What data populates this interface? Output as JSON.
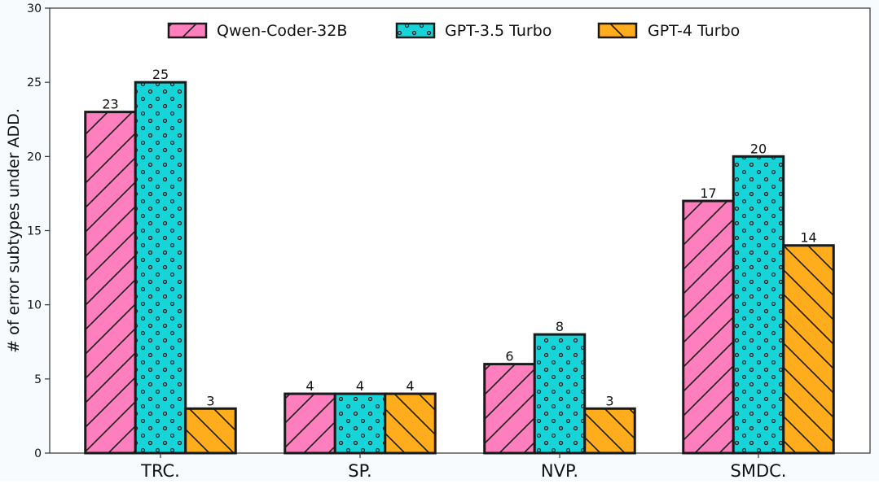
{
  "chart_data": {
    "type": "bar",
    "title": "",
    "xlabel": "",
    "ylabel": "# of error subtypes under ADD.",
    "ylim": [
      0,
      30
    ],
    "yticks": [
      0,
      5,
      10,
      15,
      20,
      25,
      30
    ],
    "grid": false,
    "legend_position": "top-center",
    "categories": [
      "TRC.",
      "SP.",
      "NVP.",
      "SMDC."
    ],
    "series": [
      {
        "name": "Qwen-Coder-32B",
        "color": "#ff7ebd",
        "pattern": "diagonal-forward",
        "values": [
          23,
          4,
          6,
          17
        ]
      },
      {
        "name": "GPT-3.5 Turbo",
        "color": "#17d4d8",
        "pattern": "dots",
        "values": [
          25,
          4,
          8,
          20
        ]
      },
      {
        "name": "GPT-4 Turbo",
        "color": "#ffad1d",
        "pattern": "diagonal-backward",
        "values": [
          3,
          4,
          3,
          14
        ]
      }
    ]
  }
}
